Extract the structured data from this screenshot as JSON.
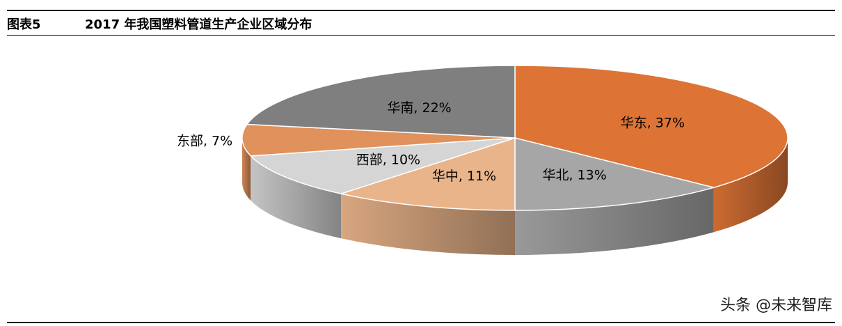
{
  "figure": {
    "number": "图表5",
    "title": "2017 年我国塑料管道生产企业区域分布"
  },
  "watermark": "头条 @未来智库",
  "chart_data": {
    "type": "pie",
    "title": "",
    "series": [
      {
        "values": [
          37,
          13,
          11,
          10,
          7,
          22
        ],
        "categories": [
          "华东",
          "华北",
          "华中",
          "西部",
          "东部",
          "华南"
        ],
        "labels": [
          "华东, 37%",
          "华北, 13%",
          "华中, 11%",
          "西部, 10%",
          "东部, 7%",
          "华南, 22%"
        ]
      }
    ],
    "colors": [
      "#DD7435",
      "#A6A6A6",
      "#EAB48A",
      "#D5D5D5",
      "#E0915C",
      "#7F7F7F"
    ],
    "style": "3d",
    "legend": "none"
  }
}
